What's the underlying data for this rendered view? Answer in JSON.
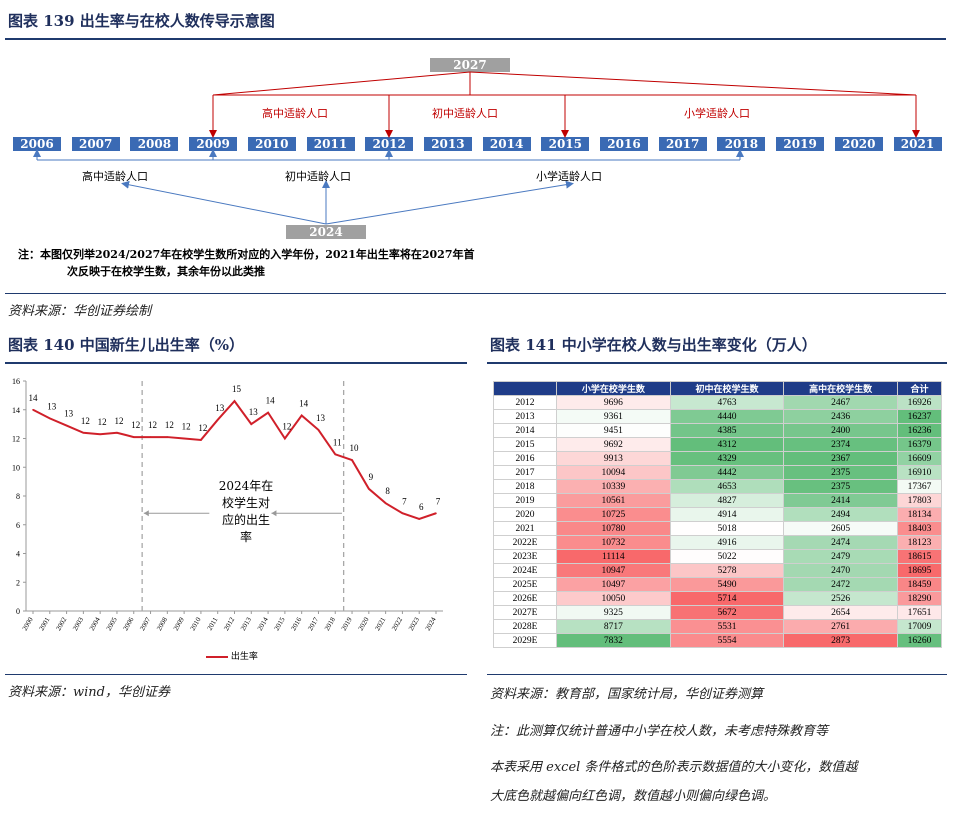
{
  "fig139": {
    "title": "图表 139   出生率与在校人数传导示意图",
    "years": [
      "2006",
      "2007",
      "2008",
      "2009",
      "2010",
      "2011",
      "2012",
      "2013",
      "2014",
      "2015",
      "2016",
      "2017",
      "2018",
      "2019",
      "2020",
      "2021"
    ],
    "top_year": "2027",
    "bottom_year": "2024",
    "top_labels": [
      "高中适龄人口",
      "初中适龄人口",
      "小学适龄人口"
    ],
    "bottom_labels": [
      "高中适龄人口",
      "初中适龄人口",
      "小学适龄人口"
    ],
    "note_line1": "注：本图仅列举2024/2027年在校学生数所对应的入学年份，2021年出生率将在2027年首",
    "note_line2": "次反映于在校学生数，其余年份以此类推",
    "source": "资料来源：华创证券绘制"
  },
  "fig140": {
    "title": "图表 140   中国新生儿出生率（%）",
    "annotation": [
      "2024年在",
      "校学生对",
      "应的出生",
      "率"
    ],
    "legend": "出生率",
    "source": "资料来源：wind，华创证券"
  },
  "fig141": {
    "title": "图表 141   中小学在校人数与出生率变化（万人）",
    "headers": [
      "",
      "小学在校学生数",
      "初中在校学生数",
      "高中在校学生数",
      "合计"
    ],
    "rows": [
      [
        "2012",
        "9696",
        "4763",
        "2467",
        "16926"
      ],
      [
        "2013",
        "9361",
        "4440",
        "2436",
        "16237"
      ],
      [
        "2014",
        "9451",
        "4385",
        "2400",
        "16236"
      ],
      [
        "2015",
        "9692",
        "4312",
        "2374",
        "16379"
      ],
      [
        "2016",
        "9913",
        "4329",
        "2367",
        "16609"
      ],
      [
        "2017",
        "10094",
        "4442",
        "2375",
        "16910"
      ],
      [
        "2018",
        "10339",
        "4653",
        "2375",
        "17367"
      ],
      [
        "2019",
        "10561",
        "4827",
        "2414",
        "17803"
      ],
      [
        "2020",
        "10725",
        "4914",
        "2494",
        "18134"
      ],
      [
        "2021",
        "10780",
        "5018",
        "2605",
        "18403"
      ],
      [
        "2022E",
        "10732",
        "4916",
        "2474",
        "18123"
      ],
      [
        "2023E",
        "11114",
        "5022",
        "2479",
        "18615"
      ],
      [
        "2024E",
        "10947",
        "5278",
        "2470",
        "18695"
      ],
      [
        "2025E",
        "10497",
        "5490",
        "2472",
        "18459"
      ],
      [
        "2026E",
        "10050",
        "5714",
        "2526",
        "18290"
      ],
      [
        "2027E",
        "9325",
        "5672",
        "2654",
        "17651"
      ],
      [
        "2028E",
        "8717",
        "5531",
        "2761",
        "17009"
      ],
      [
        "2029E",
        "7832",
        "5554",
        "2873",
        "16260"
      ]
    ],
    "source": "资料来源：教育部，国家统计局，华创证券测算",
    "note1": "注：此测算仅统计普通中小学在校人数，未考虑特殊教育等",
    "note2": "本表采用 excel 条件格式的色阶表示数据值的大小变化，数值越",
    "note3": "大底色就越偏向红色调，数值越小则偏向绿色调。"
  },
  "chart_data": {
    "type": "line",
    "title": "",
    "x": [
      "2000",
      "2001",
      "2002",
      "2003",
      "2004",
      "2005",
      "2006",
      "2007",
      "2008",
      "2009",
      "2010",
      "2011",
      "2012",
      "2013",
      "2014",
      "2015",
      "2016",
      "2017",
      "2018",
      "2019",
      "2020",
      "2021",
      "2022",
      "2023",
      "2024"
    ],
    "series": [
      {
        "name": "出生率",
        "values": [
          14.0,
          13.4,
          12.9,
          12.4,
          12.3,
          12.4,
          12.1,
          12.1,
          12.1,
          12.0,
          11.9,
          13.3,
          14.6,
          13.0,
          13.8,
          12.0,
          13.6,
          12.6,
          10.9,
          10.5,
          8.5,
          7.5,
          6.8,
          6.4,
          6.8
        ]
      }
    ],
    "data_labels": [
      "14",
      "13",
      "13",
      "12",
      "12",
      "12",
      "12",
      "12",
      "12",
      "12",
      "12",
      "13",
      "15",
      "13",
      "14",
      "12",
      "14",
      "13",
      "11",
      "10",
      "9",
      "8",
      "7",
      "6",
      "7"
    ],
    "ylim": [
      0,
      16
    ],
    "yticks": [
      "0",
      "2",
      "4",
      "6",
      "8",
      "10",
      "12",
      "14",
      "16"
    ],
    "grid": false,
    "legend_position": "bottom",
    "colors": {
      "line": "#d0202a"
    }
  }
}
